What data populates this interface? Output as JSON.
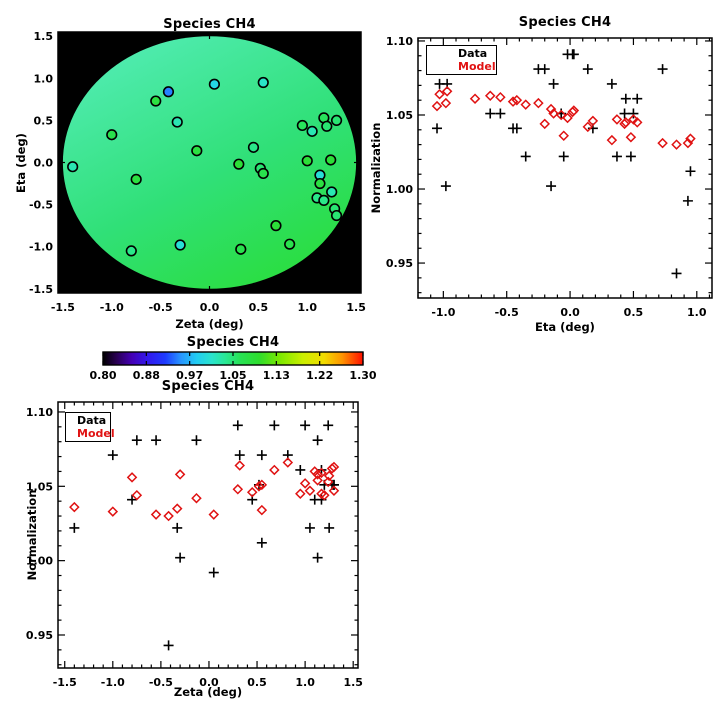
{
  "figure": {
    "legend": {
      "data_label": "Data",
      "model_label": "Model"
    },
    "colors": {
      "data_marker": "#000000",
      "model_marker": "#e01212",
      "axis": "#000000",
      "map_background": "#000000",
      "surface_gradient": [
        "#52ecb4",
        "#30e077",
        "#2add3a"
      ]
    },
    "colormap": [
      [
        0.0,
        "#000000"
      ],
      [
        0.05,
        "#28004f"
      ],
      [
        0.11,
        "#4400b4"
      ],
      [
        0.17,
        "#3318ec"
      ],
      [
        0.24,
        "#1e3cff"
      ],
      [
        0.3,
        "#2896ff"
      ],
      [
        0.36,
        "#22ccf2"
      ],
      [
        0.42,
        "#2ae4cc"
      ],
      [
        0.47,
        "#2ae896"
      ],
      [
        0.53,
        "#28e253"
      ],
      [
        0.6,
        "#2edd2e"
      ],
      [
        0.68,
        "#7ce800"
      ],
      [
        0.77,
        "#ccee00"
      ],
      [
        0.85,
        "#f2dc00"
      ],
      [
        0.92,
        "#ff9400"
      ],
      [
        1.0,
        "#ff0e00"
      ]
    ]
  },
  "chart_data": {
    "type": "scatter",
    "species": "CH4",
    "points": [
      {
        "zeta": -1.4,
        "eta": -0.05,
        "data": 1.022,
        "model": 1.036
      },
      {
        "zeta": -1.0,
        "eta": 0.33,
        "data": 1.071,
        "model": 1.033
      },
      {
        "zeta": -0.8,
        "eta": -1.05,
        "data": 1.041,
        "model": 1.056
      },
      {
        "zeta": -0.75,
        "eta": -0.2,
        "data": 1.081,
        "model": 1.044
      },
      {
        "zeta": -0.55,
        "eta": 0.73,
        "data": 1.081,
        "model": 1.031
      },
      {
        "zeta": -0.42,
        "eta": 0.84,
        "data": 0.943,
        "model": 1.03
      },
      {
        "zeta": -0.33,
        "eta": 0.48,
        "data": 1.022,
        "model": 1.035
      },
      {
        "zeta": -0.3,
        "eta": -0.98,
        "data": 1.002,
        "model": 1.058
      },
      {
        "zeta": -0.13,
        "eta": 0.14,
        "data": 1.081,
        "model": 1.042
      },
      {
        "zeta": 0.05,
        "eta": 0.93,
        "data": 0.992,
        "model": 1.031
      },
      {
        "zeta": 0.3,
        "eta": -0.02,
        "data": 1.091,
        "model": 1.048
      },
      {
        "zeta": 0.32,
        "eta": -1.03,
        "data": 1.071,
        "model": 1.064
      },
      {
        "zeta": 0.45,
        "eta": 0.18,
        "data": 1.041,
        "model": 1.046
      },
      {
        "zeta": 0.55,
        "eta": 0.95,
        "data": 1.012,
        "model": 1.034
      },
      {
        "zeta": 0.52,
        "eta": -0.07,
        "data": 1.051,
        "model": 1.05
      },
      {
        "zeta": 0.55,
        "eta": -0.13,
        "data": 1.071,
        "model": 1.051
      },
      {
        "zeta": 0.68,
        "eta": -0.75,
        "data": 1.091,
        "model": 1.061
      },
      {
        "zeta": 0.82,
        "eta": -0.97,
        "data": 1.071,
        "model": 1.066
      },
      {
        "zeta": 0.95,
        "eta": 0.44,
        "data": 1.061,
        "model": 1.045
      },
      {
        "zeta": 1.05,
        "eta": 0.37,
        "data": 1.022,
        "model": 1.047
      },
      {
        "zeta": 1.0,
        "eta": 0.02,
        "data": 1.091,
        "model": 1.052
      },
      {
        "zeta": 1.17,
        "eta": 0.53,
        "data": 1.061,
        "model": 1.045
      },
      {
        "zeta": 1.2,
        "eta": 0.43,
        "data": 1.051,
        "model": 1.044
      },
      {
        "zeta": 1.3,
        "eta": 0.5,
        "data": 1.051,
        "model": 1.047
      },
      {
        "zeta": 1.24,
        "eta": 0.03,
        "data": 1.091,
        "model": 1.053
      },
      {
        "zeta": 1.13,
        "eta": -0.15,
        "data": 1.002,
        "model": 1.054
      },
      {
        "zeta": 1.13,
        "eta": -0.25,
        "data": 1.081,
        "model": 1.058
      },
      {
        "zeta": 1.25,
        "eta": -0.35,
        "data": 1.022,
        "model": 1.057
      },
      {
        "zeta": 1.1,
        "eta": -0.42,
        "data": 1.041,
        "model": 1.06
      },
      {
        "zeta": 1.17,
        "eta": -0.45,
        "data": 1.041,
        "model": 1.059
      },
      {
        "zeta": 1.28,
        "eta": -0.55,
        "data": 1.051,
        "model": 1.062
      },
      {
        "zeta": 1.3,
        "eta": -0.63,
        "data": 1.051,
        "model": 1.063
      }
    ],
    "charts": [
      {
        "id": "map",
        "type": "scatter",
        "title": "Species CH4",
        "xlabel": "Zeta (deg)",
        "ylabel": "Eta (deg)",
        "xlim": [
          -1.55,
          1.55
        ],
        "ylim": [
          -1.55,
          1.55
        ],
        "xticks": [
          -1.5,
          -1.0,
          -0.5,
          0.0,
          0.5,
          1.0,
          1.5
        ],
        "xtick_labels": [
          "-1.5",
          "-1.0",
          "-0.5",
          "0.0",
          "0.5",
          "1.0",
          "1.5"
        ],
        "yticks": [
          1.5,
          1.0,
          0.5,
          0.0,
          -0.5,
          -1.0,
          -1.5
        ],
        "ytick_labels": [
          "1.5",
          "1.0",
          "0.5",
          "0.0",
          "-0.5",
          "-1.0",
          "-1.5"
        ],
        "x_minor_step": 0.1,
        "y_minor_step": 0.1,
        "note": "circles colored by data normalization on rainbow colormap 0.80-1.30; disc background = model surface"
      },
      {
        "id": "norm_vs_eta",
        "type": "scatter",
        "title": "Species CH4",
        "xlabel": "Eta (deg)",
        "ylabel": "Normalization",
        "xlim": [
          -1.2,
          1.12
        ],
        "ylim": [
          0.9264,
          1.102
        ],
        "xticks": [
          -1.0,
          -0.5,
          0.0,
          0.5,
          1.0
        ],
        "xtick_labels": [
          "-1.0",
          "-0.5",
          "0.0",
          "0.5",
          "1.0"
        ],
        "yticks": [
          0.95,
          1.0,
          1.05,
          1.1
        ],
        "ytick_labels": [
          "0.95",
          "1.00",
          "1.05",
          "1.10"
        ],
        "x_minor_step": 0.1,
        "y_minor_step": 0.01,
        "series": [
          {
            "name": "Data",
            "x_field": "eta",
            "y_field": "data",
            "marker": "plus",
            "color": "#000000"
          },
          {
            "name": "Model",
            "x_field": "eta",
            "y_field": "model",
            "marker": "diamond",
            "color": "#e01212"
          }
        ]
      },
      {
        "id": "colorbar",
        "type": "colorbar",
        "title": "Species CH4",
        "min": 0.8,
        "max": 1.3,
        "tick_labels": [
          "0.80",
          "0.88",
          "0.97",
          "1.05",
          "1.13",
          "1.22",
          "1.30"
        ]
      },
      {
        "id": "norm_vs_zeta",
        "type": "scatter",
        "title": "Species CH4",
        "xlabel": "Zeta (deg)",
        "ylabel": "Normalization",
        "xlim": [
          -1.57,
          1.55
        ],
        "ylim": [
          0.9278,
          1.1067
        ],
        "xticks": [
          -1.5,
          -1.0,
          -0.5,
          0.0,
          0.5,
          1.0,
          1.5
        ],
        "xtick_labels": [
          "-1.5",
          "-1.0",
          "-0.5",
          "0.0",
          "0.5",
          "1.0",
          "1.5"
        ],
        "yticks": [
          0.95,
          1.0,
          1.05,
          1.1
        ],
        "ytick_labels": [
          "0.95",
          "1.00",
          "1.05",
          "1.10"
        ],
        "x_minor_step": 0.1,
        "y_minor_step": 0.01,
        "series": [
          {
            "name": "Data",
            "x_field": "zeta",
            "y_field": "data",
            "marker": "plus",
            "color": "#000000"
          },
          {
            "name": "Model",
            "x_field": "zeta",
            "y_field": "model",
            "marker": "diamond",
            "color": "#e01212"
          }
        ]
      }
    ]
  }
}
